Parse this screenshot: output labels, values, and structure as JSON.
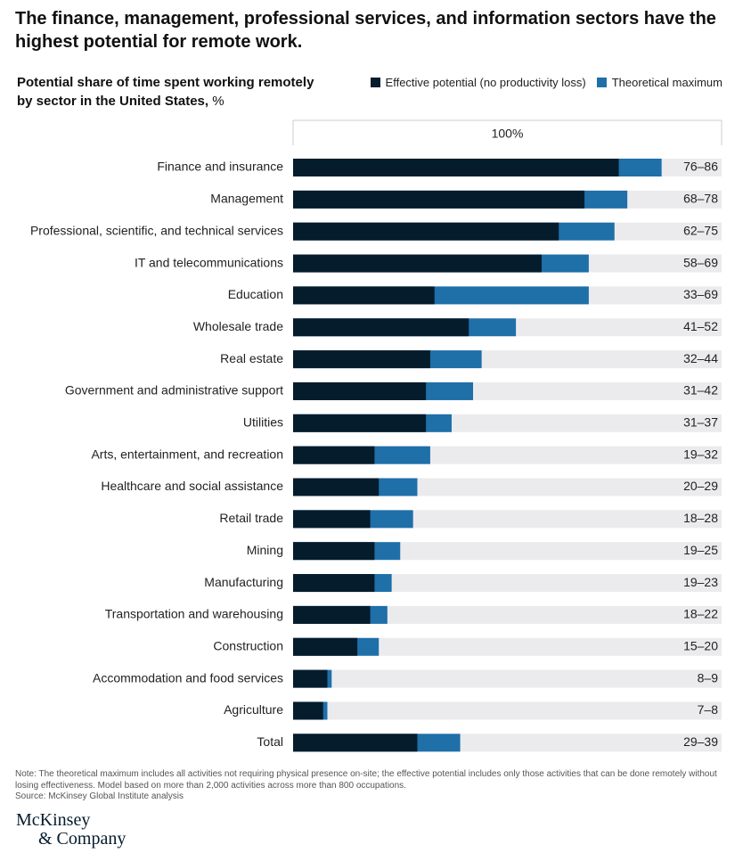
{
  "chart_data": {
    "type": "bar",
    "orientation": "horizontal",
    "title": "The finance, management, professional services, and information sectors have the highest potential for remote work.",
    "subtitle": "Potential share of time spent working remotely by sector in the United States,",
    "unit": "%",
    "scale_label": "100%",
    "xlim": [
      0,
      100
    ],
    "categories": [
      "Finance and insurance",
      "Management",
      "Professional, scientific, and technical services",
      "IT and telecommunications",
      "Education",
      "Wholesale trade",
      "Real estate",
      "Government and administrative support",
      "Utilities",
      "Arts, entertainment, and recreation",
      "Healthcare and social assistance",
      "Retail trade",
      "Mining",
      "Manufacturing",
      "Transportation and warehousing",
      "Construction",
      "Accommodation and food services",
      "Agriculture",
      "Total"
    ],
    "series": [
      {
        "name": "Effective potential (no productivity loss)",
        "color": "#051c2c",
        "values": [
          76,
          68,
          62,
          58,
          33,
          41,
          32,
          31,
          31,
          19,
          20,
          18,
          19,
          19,
          18,
          15,
          8,
          7,
          29
        ]
      },
      {
        "name": "Theoretical maximum",
        "color": "#1f6fa8",
        "values": [
          86,
          78,
          75,
          69,
          69,
          52,
          44,
          42,
          37,
          32,
          29,
          28,
          25,
          23,
          22,
          20,
          9,
          8,
          39
        ]
      }
    ],
    "value_labels": [
      "76–86",
      "68–78",
      "62–75",
      "58–69",
      "33–69",
      "41–52",
      "32–44",
      "31–42",
      "31–37",
      "19–32",
      "20–29",
      "18–28",
      "19–25",
      "19–23",
      "18–22",
      "15–20",
      "8–9",
      "7–8",
      "29–39"
    ],
    "track_color": "#ebebee",
    "note": "Note: The theoretical maximum includes all activities not requiring physical presence on-site; the effective potential includes only those activities that can be done remotely without losing effectiveness. Model based on more than 2,000 activities across more than 800 occupations.",
    "source": "Source: McKinsey Global Institute analysis",
    "logo": [
      "McKinsey",
      "& Company"
    ]
  }
}
